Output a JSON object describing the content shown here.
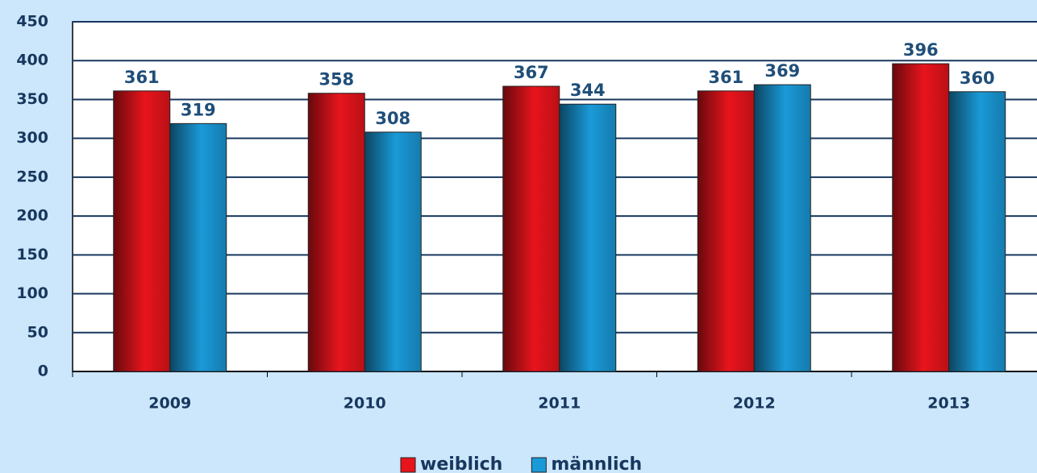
{
  "chart_data": {
    "type": "bar",
    "categories": [
      "2009",
      "2010",
      "2011",
      "2012",
      "2013"
    ],
    "series": [
      {
        "name": "weiblich",
        "color": "#e8141c",
        "values": [
          361,
          358,
          367,
          361,
          396
        ]
      },
      {
        "name": "männlich",
        "color": "#1a9ad8",
        "values": [
          319,
          308,
          344,
          369,
          360
        ]
      }
    ],
    "ylim": [
      0,
      450
    ],
    "yticks": [
      0,
      50,
      100,
      150,
      200,
      250,
      300,
      350,
      400,
      450
    ],
    "grid": true,
    "legend": "bottom"
  }
}
